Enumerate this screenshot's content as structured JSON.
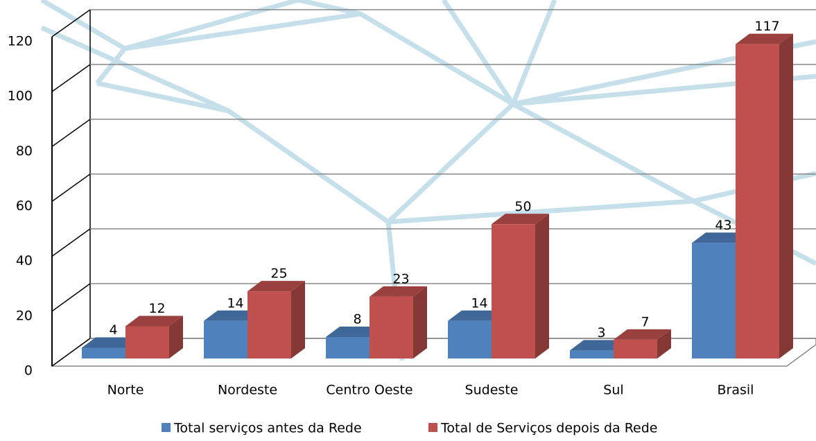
{
  "chart_data": {
    "type": "bar3d",
    "categories": [
      "Norte",
      "Nordeste",
      "Centro Oeste",
      "Sudeste",
      "Sul",
      "Brasil"
    ],
    "series": [
      {
        "name": "Total serviços antes da Rede",
        "color": "#4f81bd",
        "values": [
          4,
          14,
          8,
          14,
          3,
          43
        ]
      },
      {
        "name": "Total de Serviços depois da Rede",
        "color": "#c0504d",
        "values": [
          12,
          25,
          23,
          50,
          7,
          117
        ]
      }
    ],
    "ylim": [
      0,
      120
    ],
    "yticks": [
      0,
      20,
      40,
      60,
      80,
      100,
      120
    ],
    "grid": true,
    "data_labels": true,
    "legend": "bottom"
  }
}
